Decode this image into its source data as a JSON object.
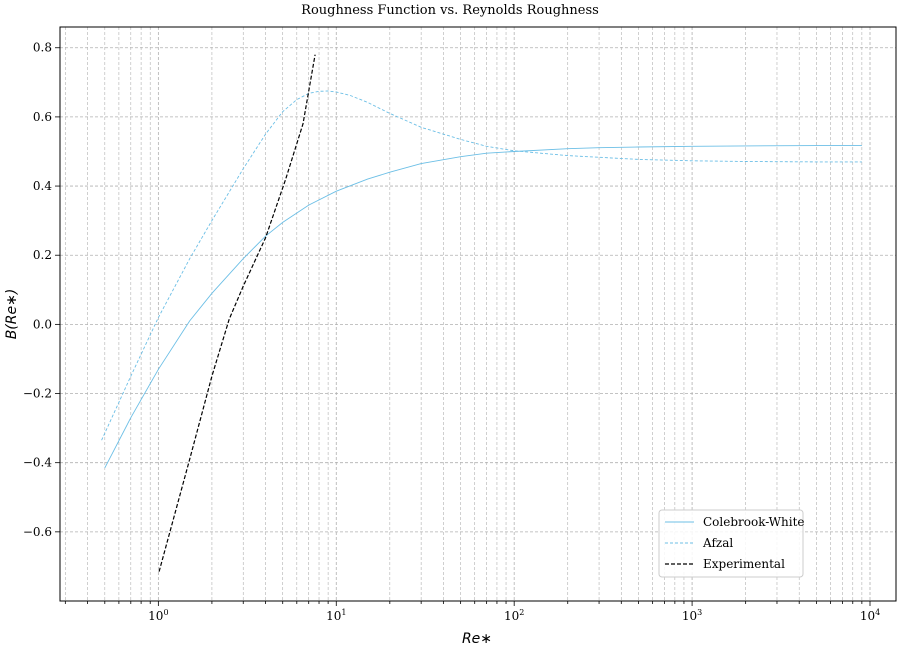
{
  "chart_data": {
    "type": "line",
    "title": "Roughness Function vs. Reynolds Roughness",
    "xlabel": "Re∗",
    "ylabel": "B(Re∗)",
    "xscale": "log",
    "xlim": [
      0.28,
      14000
    ],
    "ylim": [
      -0.8,
      0.86
    ],
    "grid": true,
    "legend_position": "lower-right",
    "x_tick_labels": [
      {
        "value": 1,
        "base": "10",
        "exp": "0"
      },
      {
        "value": 10,
        "base": "10",
        "exp": "1"
      },
      {
        "value": 100,
        "base": "10",
        "exp": "2"
      },
      {
        "value": 1000,
        "base": "10",
        "exp": "3"
      },
      {
        "value": 10000,
        "base": "10",
        "exp": "4"
      }
    ],
    "y_ticks": [
      -0.6,
      -0.4,
      -0.2,
      0.0,
      0.2,
      0.4,
      0.6,
      0.8
    ],
    "y_tick_labels": [
      "−0.6",
      "−0.4",
      "−0.2",
      "0.0",
      "0.2",
      "0.4",
      "0.6",
      "0.8"
    ],
    "series": [
      {
        "name": "Colebrook-White",
        "color": "#6cbfe6",
        "style": "solid",
        "x": [
          0.5,
          0.7,
          1.0,
          1.5,
          2.0,
          3.0,
          4.0,
          5.0,
          7.0,
          10,
          15,
          20,
          30,
          50,
          70,
          100,
          200,
          300,
          500,
          1000,
          2000,
          5000,
          9000
        ],
        "y": [
          -0.415,
          -0.27,
          -0.13,
          0.01,
          0.09,
          0.19,
          0.255,
          0.295,
          0.345,
          0.385,
          0.42,
          0.44,
          0.465,
          0.485,
          0.495,
          0.5,
          0.508,
          0.511,
          0.513,
          0.515,
          0.516,
          0.517,
          0.517
        ]
      },
      {
        "name": "Afzal",
        "color": "#6cbfe6",
        "style": "dashed",
        "x": [
          0.48,
          0.7,
          1.0,
          1.5,
          2.0,
          3.0,
          4.0,
          5.0,
          6.0,
          7.0,
          8.0,
          9.0,
          10,
          12,
          15,
          20,
          30,
          50,
          70,
          100,
          200,
          500,
          1000,
          2000,
          5000,
          9000
        ],
        "y": [
          -0.335,
          -0.15,
          0.02,
          0.19,
          0.3,
          0.45,
          0.55,
          0.615,
          0.65,
          0.668,
          0.674,
          0.675,
          0.672,
          0.662,
          0.642,
          0.61,
          0.57,
          0.535,
          0.515,
          0.502,
          0.488,
          0.477,
          0.473,
          0.471,
          0.47,
          0.47
        ]
      },
      {
        "name": "Experimental",
        "color": "#000000",
        "style": "dashed",
        "x": [
          1.01,
          1.5,
          2.0,
          2.5,
          3.0,
          4.0,
          5.2,
          6.5,
          7.6
        ],
        "y": [
          -0.715,
          -0.39,
          -0.15,
          0.015,
          0.11,
          0.25,
          0.42,
          0.58,
          0.78
        ]
      }
    ]
  }
}
